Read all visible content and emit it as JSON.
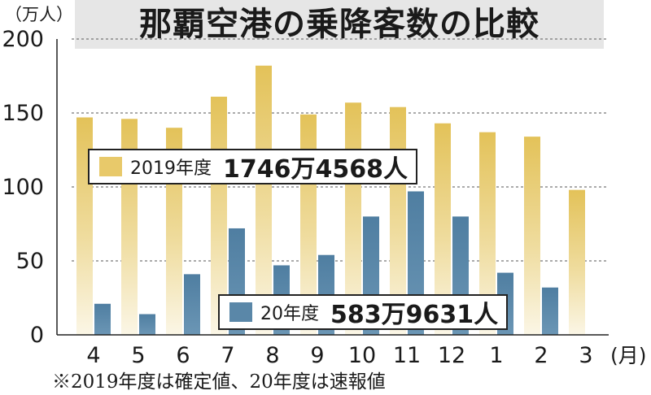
{
  "title": "那覇空港の乗降客数の比較",
  "unit_label": "（万人）",
  "footnote": "※2019年度は確定値、20年度は速報値",
  "x_unit_label": "(月)",
  "legend": [
    {
      "label": "2019年度",
      "total": "1746万4568人",
      "color": "#e8c96a"
    },
    {
      "label": "20年度",
      "total": "583万9631人",
      "color": "#5a87a8"
    }
  ],
  "chart_data": {
    "type": "bar",
    "title": "那覇空港の乗降客数の比較",
    "ylabel": "（万人）",
    "xlabel": "(月)",
    "ylim": [
      0,
      200
    ],
    "yticks": [
      0,
      50,
      100,
      150,
      200
    ],
    "grid": true,
    "categories": [
      "4",
      "5",
      "6",
      "7",
      "8",
      "9",
      "10",
      "11",
      "12",
      "1",
      "2",
      "3"
    ],
    "series": [
      {
        "name": "2019年度",
        "values": [
          147,
          146,
          140,
          161,
          182,
          149,
          157,
          154,
          143,
          137,
          134,
          98
        ]
      },
      {
        "name": "20年度",
        "values": [
          21,
          14,
          41,
          72,
          47,
          54,
          80,
          97,
          80,
          42,
          32,
          null
        ]
      }
    ]
  }
}
